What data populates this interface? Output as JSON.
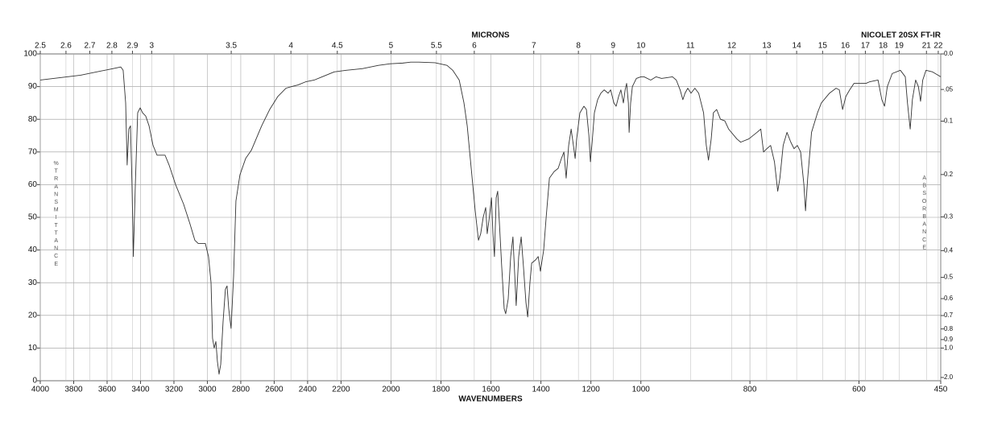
{
  "chart_data": {
    "type": "line",
    "x2label": "MICRONS",
    "instrument": "NICOLET 20SX FT-IR",
    "xlabel": "WAVENUMBERS",
    "ylabel": "%TRANSMITTANCE",
    "y2label": "ABSORBANCE",
    "xlim": [
      4000,
      450
    ],
    "xscale_breaks": [
      2200,
      1000
    ],
    "xticks": [
      4000,
      3800,
      3600,
      3400,
      3200,
      3000,
      2800,
      2600,
      2400,
      2200,
      2000,
      1800,
      1600,
      1400,
      1200,
      1000,
      800,
      600,
      450
    ],
    "x2ticks": [
      2.5,
      2.6,
      2.7,
      2.8,
      2.9,
      3,
      3.5,
      4,
      4.5,
      5,
      5.5,
      6,
      7,
      8,
      9,
      10,
      11,
      12,
      13,
      14,
      15,
      16,
      17,
      18,
      19,
      21,
      22
    ],
    "ylim": [
      0,
      100
    ],
    "yticks": [
      0,
      10,
      20,
      30,
      40,
      50,
      60,
      70,
      80,
      90,
      100
    ],
    "y2ticks": [
      {
        "value": 0,
        "label": "0.0"
      },
      {
        "value": 0.05,
        "label": ".05"
      },
      0.1,
      0.2,
      0.3,
      0.4,
      0.5,
      0.6,
      0.7,
      0.8,
      0.9,
      {
        "value": 1,
        "label": "1.0"
      },
      {
        "value": 2,
        "label": "2.0"
      }
    ],
    "grid": true,
    "color": "#333333",
    "x": [
      4000,
      3759,
      3566,
      3518,
      3504,
      3489,
      3480,
      3470,
      3460,
      3451,
      3443,
      3431,
      3417,
      3402,
      3388,
      3369,
      3349,
      3325,
      3301,
      3253,
      3229,
      3190,
      3142,
      3104,
      3075,
      3055,
      3012,
      2993,
      2978,
      2969,
      2959,
      2949,
      2940,
      2930,
      2920,
      2906,
      2892,
      2882,
      2872,
      2858,
      2843,
      2829,
      2805,
      2771,
      2737,
      2708,
      2675,
      2627,
      2578,
      2530,
      2496,
      2458,
      2410,
      2361,
      2313,
      2241,
      2179,
      2115,
      2050,
      2002,
      1953,
      1921,
      1889,
      1824,
      1776,
      1753,
      1727,
      1708,
      1695,
      1679,
      1663,
      1650,
      1641,
      1631,
      1621,
      1615,
      1608,
      1598,
      1592,
      1586,
      1579,
      1573,
      1566,
      1557,
      1547,
      1541,
      1531,
      1521,
      1512,
      1499,
      1489,
      1479,
      1470,
      1460,
      1453,
      1444,
      1437,
      1421,
      1411,
      1402,
      1389,
      1379,
      1366,
      1347,
      1331,
      1318,
      1308,
      1299,
      1289,
      1279,
      1270,
      1263,
      1257,
      1244,
      1228,
      1218,
      1208,
      1202,
      1195,
      1186,
      1173,
      1160,
      1147,
      1131,
      1121,
      1108,
      1099,
      1089,
      1080,
      1070,
      1063,
      1057,
      1050,
      1047,
      1041,
      1034,
      1018,
      1000,
      994,
      982,
      972,
      962,
      942,
      935,
      928,
      923,
      919,
      914,
      908,
      901,
      894,
      885,
      880,
      876,
      871,
      867,
      861,
      854,
      846,
      839,
      824,
      817,
      802,
      787,
      780,
      775,
      769,
      762,
      755,
      749,
      745,
      739,
      732,
      725,
      719,
      713,
      707,
      701,
      698,
      694,
      687,
      676,
      669,
      654,
      642,
      636,
      630,
      624,
      617,
      609,
      587,
      580,
      565,
      558,
      553,
      548,
      539,
      524,
      515,
      511,
      506,
      502,
      496,
      491,
      487,
      483,
      477,
      465,
      450
    ],
    "values": [
      92,
      93.5,
      95.5,
      96,
      95,
      85,
      66,
      77,
      78,
      60,
      38,
      60,
      82,
      83.5,
      82,
      81,
      78,
      72,
      69,
      69,
      66,
      60,
      54,
      48,
      43,
      42,
      42,
      38,
      30,
      13,
      10,
      12,
      6,
      2,
      5,
      18,
      28,
      29,
      22,
      16,
      32,
      55,
      63,
      68,
      70.5,
      74,
      78,
      83,
      87,
      89.5,
      90,
      90.5,
      91.5,
      92,
      93,
      94.5,
      95,
      95.5,
      96.5,
      97,
      97.2,
      97.5,
      97.5,
      97.3,
      96.5,
      95,
      92,
      85,
      78,
      65,
      52,
      43,
      45,
      50,
      53,
      45,
      49,
      56,
      45,
      38,
      56,
      58,
      48,
      35,
      22,
      20.5,
      25,
      38,
      44,
      23,
      38,
      44,
      35,
      24,
      19.5,
      30,
      36,
      37,
      38,
      33.5,
      40,
      50,
      62,
      64,
      65,
      68,
      70,
      62,
      72,
      77,
      72,
      68,
      74,
      82,
      84,
      83,
      75,
      67,
      73,
      82,
      86,
      88,
      89,
      88,
      89,
      85,
      84,
      87,
      89,
      85,
      89,
      91,
      85,
      76,
      85,
      90,
      92.5,
      93,
      93,
      92,
      93,
      92.5,
      93,
      92,
      89,
      86,
      88,
      89.5,
      88,
      89.5,
      88,
      82,
      72,
      67.5,
      74,
      82,
      83,
      80,
      79.5,
      77,
      74,
      73,
      74,
      76,
      77,
      70,
      71,
      72,
      67,
      58,
      62,
      72,
      76,
      73,
      71,
      72,
      70,
      60,
      52,
      62,
      76,
      82,
      85,
      88,
      89.5,
      89,
      83,
      87,
      89,
      91,
      91,
      91.5,
      92,
      86,
      84,
      90,
      94,
      95,
      93,
      85,
      77,
      86,
      92,
      90,
      85.5,
      92,
      95,
      94.5,
      93
    ]
  }
}
